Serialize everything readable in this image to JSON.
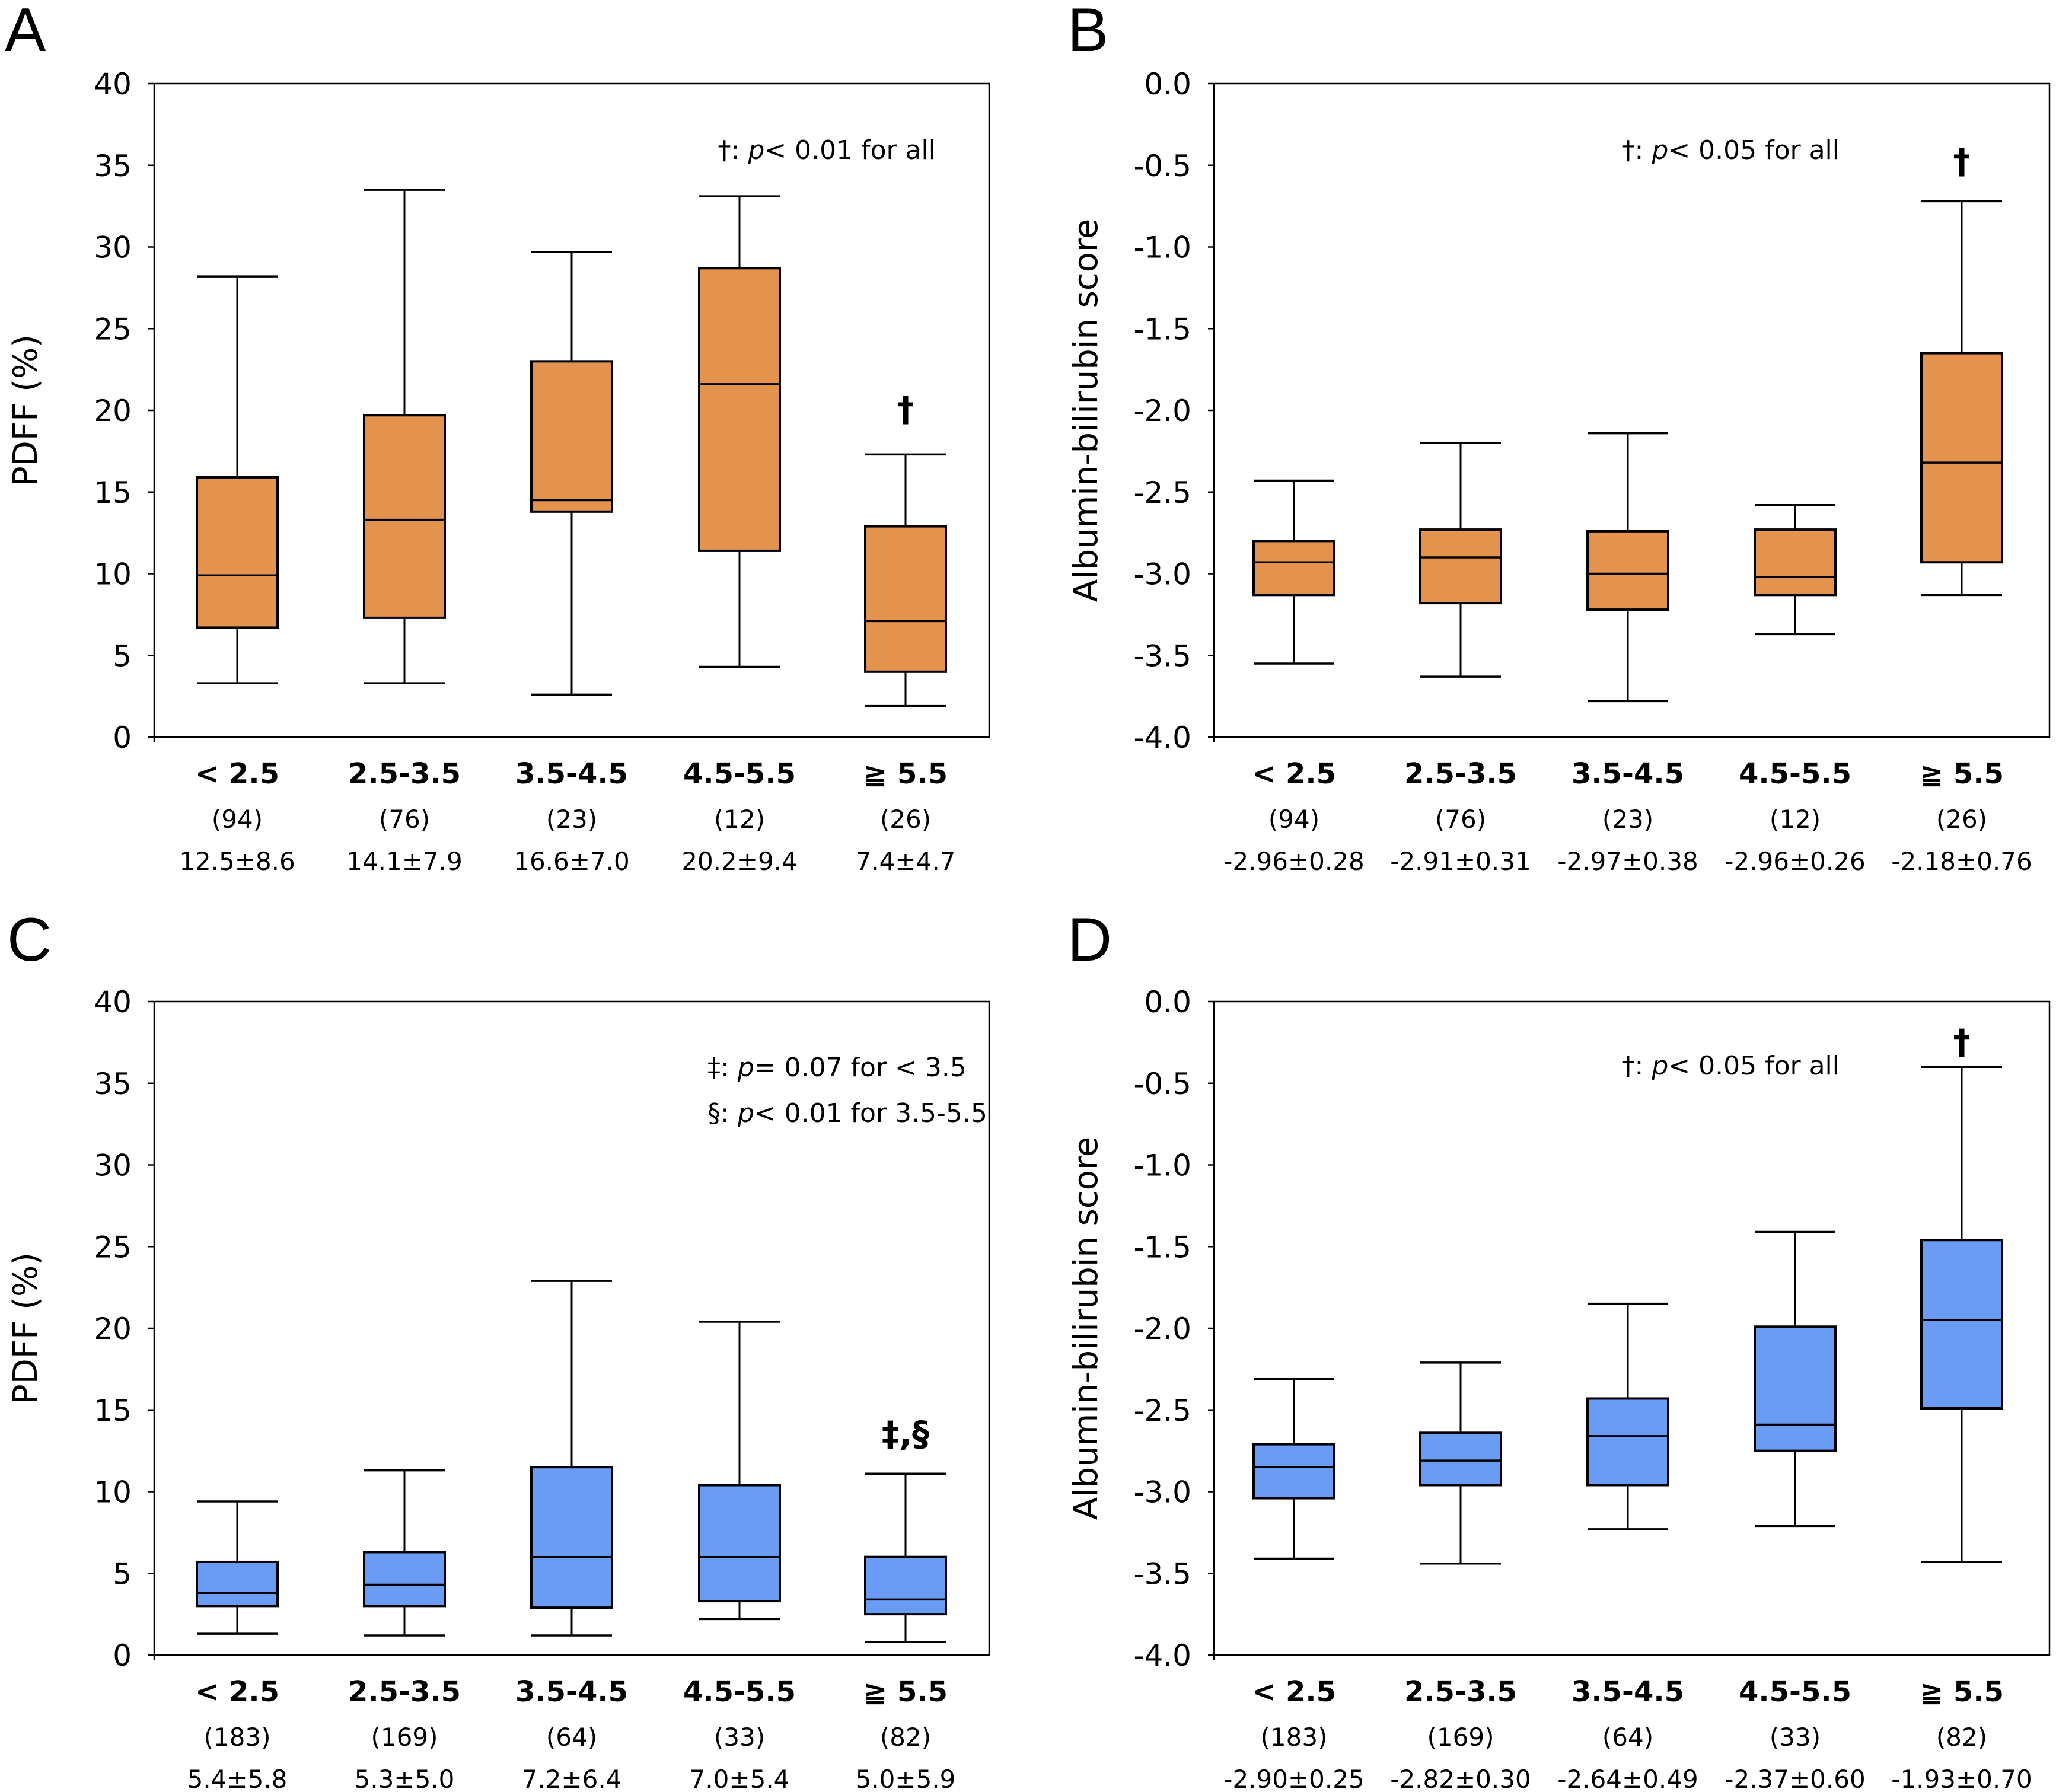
{
  "figure": {
    "panels": [
      "A",
      "B",
      "C",
      "D"
    ]
  },
  "colors": {
    "orange_fill": "#E3934D",
    "blue_fill": "#6A9BF5",
    "stroke": "#000000"
  },
  "chart_data": [
    {
      "panel": "A",
      "type": "box",
      "fill": "orange",
      "ylabel": "PDFF (%)",
      "ylim": [
        0,
        40
      ],
      "yticks": [
        0,
        5,
        10,
        15,
        20,
        25,
        30,
        35,
        40
      ],
      "ytick_labels": [
        "0",
        "5",
        "10",
        "15",
        "20",
        "25",
        "30",
        "35",
        "40"
      ],
      "categories": [
        "< 2.5",
        "2.5-3.5",
        "3.5-4.5",
        "4.5-5.5",
        "≧ 5.5"
      ],
      "n_labels": [
        "(94)",
        "(76)",
        "(23)",
        "(12)",
        "(26)"
      ],
      "stat_labels": [
        "12.5±8.6",
        "14.1±7.9",
        "16.6±7.0",
        "20.2±9.4",
        "7.4±4.7"
      ],
      "boxes": [
        {
          "whisker_low": 3.3,
          "q1": 6.7,
          "median": 9.9,
          "q3": 15.9,
          "whisker_high": 28.2
        },
        {
          "whisker_low": 3.3,
          "q1": 7.3,
          "median": 13.3,
          "q3": 19.7,
          "whisker_high": 33.5
        },
        {
          "whisker_low": 2.6,
          "q1": 13.8,
          "median": 14.5,
          "q3": 23.0,
          "whisker_high": 29.7
        },
        {
          "whisker_low": 4.3,
          "q1": 11.4,
          "median": 21.6,
          "q3": 28.7,
          "whisker_high": 33.1
        },
        {
          "whisker_low": 1.9,
          "q1": 4.0,
          "median": 7.1,
          "q3": 12.9,
          "whisker_high": 17.3
        }
      ],
      "annotations": [
        {
          "prefix": "†: ",
          "italic": "p",
          "suffix": "< 0.01 for all"
        }
      ],
      "markers": [
        {
          "category_index": 4,
          "text": "†"
        }
      ]
    },
    {
      "panel": "B",
      "type": "box",
      "fill": "orange",
      "ylabel": "Albumin-bilirubin score",
      "ylim": [
        -4.0,
        0.0
      ],
      "yticks": [
        -4.0,
        -3.5,
        -3.0,
        -2.5,
        -2.0,
        -1.5,
        -1.0,
        -0.5,
        0.0
      ],
      "ytick_labels": [
        "-4.0",
        "-3.5",
        "-3.0",
        "-2.5",
        "-2.0",
        "-1.5",
        "-1.0",
        "-0.5",
        "0.0"
      ],
      "categories": [
        "< 2.5",
        "2.5-3.5",
        "3.5-4.5",
        "4.5-5.5",
        "≧ 5.5"
      ],
      "n_labels": [
        "(94)",
        "(76)",
        "(23)",
        "(12)",
        "(26)"
      ],
      "stat_labels": [
        "-2.96±0.28",
        "-2.91±0.31",
        "-2.97±0.38",
        "-2.96±0.26",
        "-2.18±0.76"
      ],
      "boxes": [
        {
          "whisker_low": -3.55,
          "q1": -3.13,
          "median": -2.93,
          "q3": -2.8,
          "whisker_high": -2.43
        },
        {
          "whisker_low": -3.63,
          "q1": -3.18,
          "median": -2.9,
          "q3": -2.73,
          "whisker_high": -2.2
        },
        {
          "whisker_low": -3.78,
          "q1": -3.22,
          "median": -3.0,
          "q3": -2.74,
          "whisker_high": -2.14
        },
        {
          "whisker_low": -3.37,
          "q1": -3.13,
          "median": -3.02,
          "q3": -2.73,
          "whisker_high": -2.58
        },
        {
          "whisker_low": -3.13,
          "q1": -2.93,
          "median": -2.32,
          "q3": -1.65,
          "whisker_high": -0.72
        }
      ],
      "annotations": [
        {
          "prefix": "†: ",
          "italic": "p",
          "suffix": "< 0.05 for all"
        }
      ],
      "markers": [
        {
          "category_index": 4,
          "text": "†"
        }
      ]
    },
    {
      "panel": "C",
      "type": "box",
      "fill": "blue",
      "ylabel": "PDFF (%)",
      "ylim": [
        0,
        40
      ],
      "yticks": [
        0,
        5,
        10,
        15,
        20,
        25,
        30,
        35,
        40
      ],
      "ytick_labels": [
        "0",
        "5",
        "10",
        "15",
        "20",
        "25",
        "30",
        "35",
        "40"
      ],
      "categories": [
        "< 2.5",
        "2.5-3.5",
        "3.5-4.5",
        "4.5-5.5",
        "≧ 5.5"
      ],
      "n_labels": [
        "(183)",
        "(169)",
        "(64)",
        "(33)",
        "(82)"
      ],
      "stat_labels": [
        "5.4±5.8",
        "5.3±5.0",
        "7.2±6.4",
        "7.0±5.4",
        "5.0±5.9"
      ],
      "boxes": [
        {
          "whisker_low": 1.3,
          "q1": 3.0,
          "median": 3.8,
          "q3": 5.7,
          "whisker_high": 9.4
        },
        {
          "whisker_low": 1.2,
          "q1": 3.0,
          "median": 4.3,
          "q3": 6.3,
          "whisker_high": 11.3
        },
        {
          "whisker_low": 1.2,
          "q1": 2.9,
          "median": 6.0,
          "q3": 11.5,
          "whisker_high": 22.9
        },
        {
          "whisker_low": 2.2,
          "q1": 3.3,
          "median": 6.0,
          "q3": 10.4,
          "whisker_high": 20.4
        },
        {
          "whisker_low": 0.8,
          "q1": 2.5,
          "median": 3.4,
          "q3": 6.0,
          "whisker_high": 11.1
        }
      ],
      "annotations": [
        {
          "prefix": "‡: ",
          "italic": "p",
          "suffix": "= 0.07 for < 3.5"
        },
        {
          "prefix": "§: ",
          "italic": "p",
          "suffix": "< 0.01 for 3.5-5.5"
        }
      ],
      "markers": [
        {
          "category_index": 4,
          "text": "‡,§"
        }
      ]
    },
    {
      "panel": "D",
      "type": "box",
      "fill": "blue",
      "ylabel": "Albumin-bilirubin score",
      "ylim": [
        -4.0,
        0.0
      ],
      "yticks": [
        -4.0,
        -3.5,
        -3.0,
        -2.5,
        -2.0,
        -1.5,
        -1.0,
        -0.5,
        0.0
      ],
      "ytick_labels": [
        "-4.0",
        "-3.5",
        "-3.0",
        "-2.5",
        "-2.0",
        "-1.5",
        "-1.0",
        "-0.5",
        "0.0"
      ],
      "categories": [
        "< 2.5",
        "2.5-3.5",
        "3.5-4.5",
        "4.5-5.5",
        "≧ 5.5"
      ],
      "n_labels": [
        "(183)",
        "(169)",
        "(64)",
        "(33)",
        "(82)"
      ],
      "stat_labels": [
        "-2.90±0.25",
        "-2.82±0.30",
        "-2.64±0.49",
        "-2.37±0.60",
        "-1.93±0.70"
      ],
      "boxes": [
        {
          "whisker_low": -3.41,
          "q1": -3.04,
          "median": -2.85,
          "q3": -2.71,
          "whisker_high": -2.31
        },
        {
          "whisker_low": -3.44,
          "q1": -2.96,
          "median": -2.81,
          "q3": -2.64,
          "whisker_high": -2.21
        },
        {
          "whisker_low": -3.23,
          "q1": -2.96,
          "median": -2.66,
          "q3": -2.43,
          "whisker_high": -1.85
        },
        {
          "whisker_low": -3.21,
          "q1": -2.75,
          "median": -2.59,
          "q3": -1.99,
          "whisker_high": -1.41
        },
        {
          "whisker_low": -3.43,
          "q1": -2.49,
          "median": -1.95,
          "q3": -1.46,
          "whisker_high": -0.4
        }
      ],
      "annotations": [
        {
          "prefix": "†: ",
          "italic": "p",
          "suffix": "< 0.05 for all"
        }
      ],
      "markers": [
        {
          "category_index": 4,
          "text": "†"
        }
      ]
    }
  ]
}
